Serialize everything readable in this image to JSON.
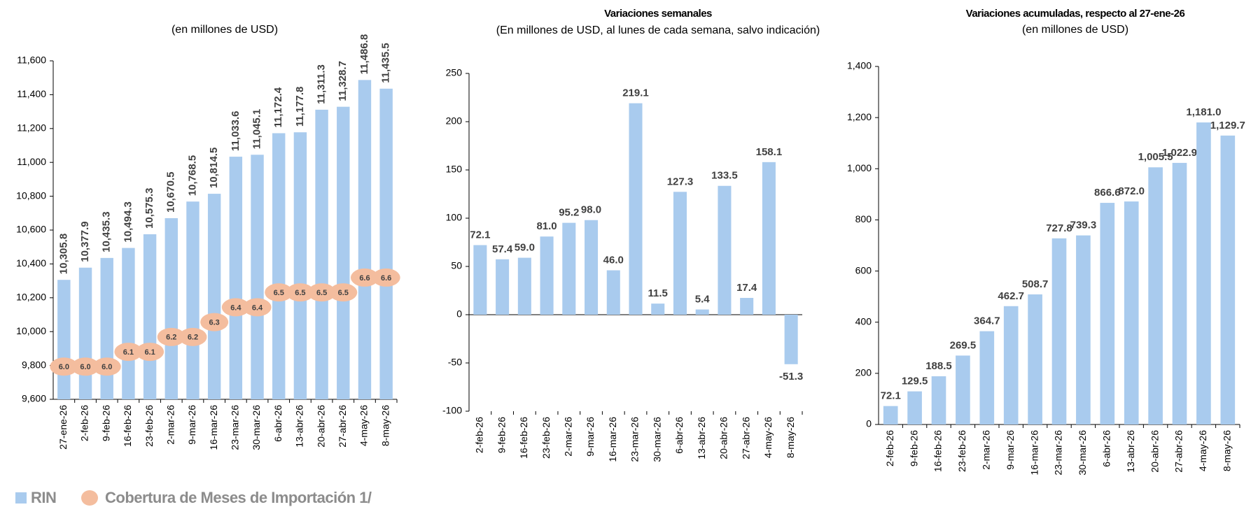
{
  "chart_data": [
    {
      "type": "bar",
      "subtitle": "(en millones de USD)",
      "categories": [
        "27-ene-26",
        "2-feb-26",
        "9-feb-26",
        "16-feb-26",
        "23-feb-26",
        "2-mar-26",
        "9-mar-26",
        "16-mar-26",
        "23-mar-26",
        "30-mar-26",
        "6-abr-26",
        "13-abr-26",
        "20-abr-26",
        "27-abr-26",
        "4-may-26",
        "8-may-26"
      ],
      "series": [
        {
          "name": "RIN",
          "color": "#a9cbee",
          "values": [
            10305.8,
            10377.9,
            10435.3,
            10494.3,
            10575.3,
            10670.5,
            10768.5,
            10814.5,
            11033.6,
            11045.1,
            11172.4,
            11177.8,
            11311.3,
            11328.7,
            11486.8,
            11435.5
          ],
          "value_labels": [
            "10,305.8",
            "10,377.9",
            "10,435.3",
            "10,494.3",
            "10,575.3",
            "10,670.5",
            "10,768.5",
            "10,814.5",
            "11,033.6",
            "11,045.1",
            "11,172.4",
            "11,177.8",
            "11,311.3",
            "11,328.7",
            "11,486.8",
            "11,435.5"
          ]
        },
        {
          "name": "Cobertura de Meses de Importación 1/",
          "type": "scatter",
          "axis": "y2",
          "color": "#f4bd9e",
          "values": [
            6.0,
            6.0,
            6.0,
            6.1,
            6.1,
            6.2,
            6.2,
            6.3,
            6.4,
            6.4,
            6.5,
            6.5,
            6.5,
            6.5,
            6.6,
            6.6
          ],
          "value_labels": [
            "6.0",
            "6.0",
            "6.0",
            "6.1",
            "6.1",
            "6.2",
            "6.2",
            "6.3",
            "6.4",
            "6.4",
            "6.5",
            "6.5",
            "6.5",
            "6.5",
            "6.6",
            "6.6"
          ]
        }
      ],
      "ylim": [
        9600,
        11600
      ],
      "yticks": [
        {
          "value": 9600,
          "label": "9,600"
        },
        {
          "value": 9800,
          "label": "9,800"
        },
        {
          "value": 10000,
          "label": "10,000"
        },
        {
          "value": 10200,
          "label": "10,200"
        },
        {
          "value": 10400,
          "label": "10,400"
        },
        {
          "value": 10600,
          "label": "10,600"
        },
        {
          "value": 10800,
          "label": "10,800"
        },
        {
          "value": 11000,
          "label": "11,000"
        },
        {
          "value": 11200,
          "label": "11,200"
        },
        {
          "value": 11400,
          "label": "11,400"
        },
        {
          "value": 11600,
          "label": "11,600"
        }
      ],
      "y2lim": [
        5.78,
        8.06
      ],
      "grid": false
    },
    {
      "type": "bar",
      "title": "Variaciones semanales",
      "subtitle": "(En millones de USD, al lunes de cada semana, salvo indicación)",
      "categories": [
        "2-feb-26",
        "9-feb-26",
        "16-feb-26",
        "23-feb-26",
        "2-mar-26",
        "9-mar-26",
        "16-mar-26",
        "23-mar-26",
        "30-mar-26",
        "6-abr-26",
        "13-abr-26",
        "20-abr-26",
        "27-abr-26",
        "4-may-26",
        "8-may-26"
      ],
      "series": [
        {
          "color": "#a9cbee",
          "values": [
            72.1,
            57.4,
            59.0,
            81.0,
            95.2,
            98.0,
            46.0,
            219.1,
            11.5,
            127.3,
            5.4,
            133.5,
            17.4,
            158.1,
            -51.3
          ],
          "value_labels": [
            "72.1",
            "57.4",
            "59.0",
            "81.0",
            "95.2",
            "98.0",
            "46.0",
            "219.1",
            "11.5",
            "127.3",
            "5.4",
            "133.5",
            "17.4",
            "158.1",
            "-51.3"
          ]
        }
      ],
      "ylim": [
        -100,
        250
      ],
      "yticks": [
        -100,
        -50,
        0,
        50,
        100,
        150,
        200,
        250
      ],
      "grid": false
    },
    {
      "type": "bar",
      "title": "Variaciones acumuladas, respecto al 27-ene-26",
      "subtitle": "(en millones de USD)",
      "categories": [
        "2-feb-26",
        "9-feb-26",
        "16-feb-26",
        "23-feb-26",
        "2-mar-26",
        "9-mar-26",
        "16-mar-26",
        "23-mar-26",
        "30-mar-26",
        "6-abr-26",
        "13-abr-26",
        "20-abr-26",
        "27-abr-26",
        "4-may-26",
        "8-may-26"
      ],
      "series": [
        {
          "color": "#a9cbee",
          "values": [
            72.1,
            129.5,
            188.5,
            269.5,
            364.7,
            462.7,
            508.7,
            727.8,
            739.3,
            866.6,
            872.0,
            1005.5,
            1022.9,
            1181.0,
            1129.7
          ],
          "value_labels": [
            "72.1",
            "129.5",
            "188.5",
            "269.5",
            "364.7",
            "462.7",
            "508.7",
            "727.8",
            "739.3",
            "866.6",
            "872.0",
            "1,005.5",
            "1,022.9",
            "1,181.0",
            "1,129.7"
          ]
        }
      ],
      "ylim": [
        0,
        1400
      ],
      "yticks": [
        0,
        200,
        400,
        600,
        800,
        {
          "value": 1000,
          "label": "1,000"
        },
        {
          "value": 1200,
          "label": "1,200"
        },
        {
          "value": 1400,
          "label": "1,400"
        }
      ],
      "grid": false
    }
  ]
}
